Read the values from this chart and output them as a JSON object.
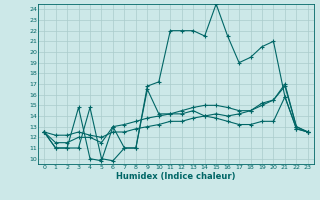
{
  "xlabel": "Humidex (Indice chaleur)",
  "xlim": [
    -0.5,
    23.5
  ],
  "ylim": [
    9.5,
    24.5
  ],
  "yticks": [
    10,
    11,
    12,
    13,
    14,
    15,
    16,
    17,
    18,
    19,
    20,
    21,
    22,
    23,
    24
  ],
  "xticks": [
    0,
    1,
    2,
    3,
    4,
    5,
    6,
    7,
    8,
    9,
    10,
    11,
    12,
    13,
    14,
    15,
    16,
    17,
    18,
    19,
    20,
    21,
    22,
    23
  ],
  "bg_color": "#cce8e8",
  "grid_color": "#aacccc",
  "line_color": "#006666",
  "line1_x": [
    0,
    1,
    2,
    3,
    4,
    5,
    6,
    7,
    8,
    9,
    10,
    11,
    12,
    13,
    14,
    15,
    16,
    17,
    18,
    19,
    20,
    21,
    22,
    23
  ],
  "line1_y": [
    12.5,
    11,
    11,
    14.8,
    10,
    9.8,
    13,
    11,
    11,
    16.8,
    17.2,
    22,
    22,
    22,
    21.5,
    24.5,
    21.5,
    19,
    19.5,
    20.5,
    21,
    15.8,
    12.8,
    12.5
  ],
  "line2_x": [
    0,
    1,
    2,
    3,
    4,
    5,
    6,
    7,
    8,
    9,
    10,
    11,
    12,
    13,
    14,
    15,
    16,
    17,
    18,
    19,
    20,
    21,
    22,
    23
  ],
  "line2_y": [
    12.5,
    11,
    11,
    11,
    14.8,
    10,
    9.8,
    11,
    11,
    16.5,
    14.2,
    14.2,
    14.2,
    14.5,
    14.0,
    13.8,
    13.5,
    13.2,
    13.2,
    13.5,
    13.5,
    15.8,
    12.8,
    12.5
  ],
  "line3_x": [
    0,
    1,
    2,
    3,
    4,
    5,
    6,
    7,
    8,
    9,
    10,
    11,
    12,
    13,
    14,
    15,
    16,
    17,
    18,
    19,
    20,
    21,
    22,
    23
  ],
  "line3_y": [
    12.5,
    11.5,
    11.5,
    12.0,
    12.0,
    11.5,
    13.0,
    13.2,
    13.5,
    13.8,
    14.0,
    14.2,
    14.5,
    14.8,
    15.0,
    15.0,
    14.8,
    14.5,
    14.5,
    15.2,
    15.5,
    16.8,
    13.0,
    12.5
  ],
  "line4_x": [
    0,
    1,
    2,
    3,
    4,
    5,
    6,
    7,
    8,
    9,
    10,
    11,
    12,
    13,
    14,
    15,
    16,
    17,
    18,
    19,
    20,
    21,
    22,
    23
  ],
  "line4_y": [
    12.5,
    12.2,
    12.2,
    12.5,
    12.2,
    12.0,
    12.5,
    12.5,
    12.8,
    13.0,
    13.2,
    13.5,
    13.5,
    13.8,
    14.0,
    14.2,
    14.0,
    14.2,
    14.5,
    15.0,
    15.5,
    17.0,
    13.0,
    12.5
  ]
}
